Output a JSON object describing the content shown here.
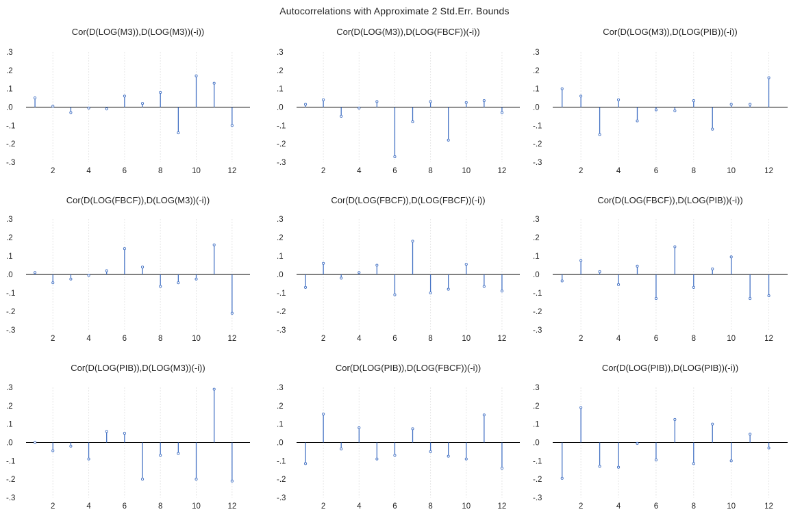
{
  "title": "Autocorrelations with Approximate 2 Std.Err. Bounds",
  "chart_data": [
    {
      "type": "bar",
      "title": "Cor(D(LOG(M3)),D(LOG(M3))(-i))",
      "x": [
        1,
        2,
        3,
        4,
        5,
        6,
        7,
        8,
        9,
        10,
        11,
        12
      ],
      "values": [
        0.05,
        0.005,
        -0.03,
        -0.005,
        -0.01,
        0.06,
        0.02,
        0.08,
        -0.14,
        0.17,
        0.13,
        -0.1
      ],
      "ylim": [
        -0.3,
        0.3
      ],
      "yticks": [
        ".3",
        ".2",
        ".1",
        ".0",
        "-.1",
        "-.2",
        "-.3"
      ],
      "xticks": [
        "2",
        "4",
        "6",
        "8",
        "10",
        "12"
      ],
      "grid": true
    },
    {
      "type": "bar",
      "title": "Cor(D(LOG(M3)),D(LOG(FBCF))(-i))",
      "x": [
        1,
        2,
        3,
        4,
        5,
        6,
        7,
        8,
        9,
        10,
        11,
        12
      ],
      "values": [
        0.015,
        0.04,
        -0.05,
        -0.005,
        0.03,
        -0.27,
        -0.08,
        0.03,
        -0.18,
        0.025,
        0.035,
        -0.03
      ],
      "ylim": [
        -0.3,
        0.3
      ],
      "yticks": [
        ".3",
        ".2",
        ".1",
        ".0",
        "-.1",
        "-.2",
        "-.3"
      ],
      "xticks": [
        "2",
        "4",
        "6",
        "8",
        "10",
        "12"
      ],
      "grid": true
    },
    {
      "type": "bar",
      "title": "Cor(D(LOG(M3)),D(LOG(PIB))(-i))",
      "x": [
        1,
        2,
        3,
        4,
        5,
        6,
        7,
        8,
        9,
        10,
        11,
        12
      ],
      "values": [
        0.1,
        0.06,
        -0.15,
        0.04,
        -0.075,
        -0.015,
        -0.02,
        0.035,
        -0.12,
        0.015,
        0.015,
        0.16
      ],
      "ylim": [
        -0.3,
        0.3
      ],
      "yticks": [
        ".3",
        ".2",
        ".1",
        ".0",
        "-.1",
        "-.2",
        "-.3"
      ],
      "xticks": [
        "2",
        "4",
        "6",
        "8",
        "10",
        "12"
      ],
      "grid": true
    },
    {
      "type": "bar",
      "title": "Cor(D(LOG(FBCF)),D(LOG(M3))(-i))",
      "x": [
        1,
        2,
        3,
        4,
        5,
        6,
        7,
        8,
        9,
        10,
        11,
        12
      ],
      "values": [
        0.01,
        -0.045,
        -0.025,
        -0.005,
        0.02,
        0.14,
        0.04,
        -0.065,
        -0.045,
        -0.025,
        0.16,
        -0.21
      ],
      "ylim": [
        -0.3,
        0.3
      ],
      "yticks": [
        ".3",
        ".2",
        ".1",
        ".0",
        "-.1",
        "-.2",
        "-.3"
      ],
      "xticks": [
        "2",
        "4",
        "6",
        "8",
        "10",
        "12"
      ],
      "grid": true
    },
    {
      "type": "bar",
      "title": "Cor(D(LOG(FBCF)),D(LOG(FBCF))(-i))",
      "x": [
        1,
        2,
        3,
        4,
        5,
        6,
        7,
        8,
        9,
        10,
        11,
        12
      ],
      "values": [
        -0.07,
        0.06,
        -0.02,
        0.01,
        0.05,
        -0.11,
        0.18,
        -0.1,
        -0.08,
        0.055,
        -0.065,
        -0.09
      ],
      "ylim": [
        -0.3,
        0.3
      ],
      "yticks": [
        ".3",
        ".2",
        ".1",
        ".0",
        "-.1",
        "-.2",
        "-.3"
      ],
      "xticks": [
        "2",
        "4",
        "6",
        "8",
        "10",
        "12"
      ],
      "grid": true
    },
    {
      "type": "bar",
      "title": "Cor(D(LOG(FBCF)),D(LOG(PIB))(-i))",
      "x": [
        1,
        2,
        3,
        4,
        5,
        6,
        7,
        8,
        9,
        10,
        11,
        12
      ],
      "values": [
        -0.035,
        0.075,
        0.015,
        -0.055,
        0.045,
        -0.13,
        0.15,
        -0.07,
        0.03,
        0.095,
        -0.13,
        -0.115
      ],
      "ylim": [
        -0.3,
        0.3
      ],
      "yticks": [
        ".3",
        ".2",
        ".1",
        ".0",
        "-.1",
        "-.2",
        "-.3"
      ],
      "xticks": [
        "2",
        "4",
        "6",
        "8",
        "10",
        "12"
      ],
      "grid": true
    },
    {
      "type": "bar",
      "title": "Cor(D(LOG(PIB)),D(LOG(M3))(-i))",
      "x": [
        1,
        2,
        3,
        4,
        5,
        6,
        7,
        8,
        9,
        10,
        11,
        12
      ],
      "values": [
        0.0,
        -0.045,
        -0.02,
        -0.09,
        0.06,
        0.05,
        -0.2,
        -0.07,
        -0.06,
        -0.2,
        0.29,
        -0.21
      ],
      "ylim": [
        -0.3,
        0.3
      ],
      "yticks": [
        ".3",
        ".2",
        ".1",
        ".0",
        "-.1",
        "-.2",
        "-.3"
      ],
      "xticks": [
        "2",
        "4",
        "6",
        "8",
        "10",
        "12"
      ],
      "grid": true
    },
    {
      "type": "bar",
      "title": "Cor(D(LOG(PIB)),D(LOG(FBCF))(-i))",
      "x": [
        1,
        2,
        3,
        4,
        5,
        6,
        7,
        8,
        9,
        10,
        11,
        12
      ],
      "values": [
        -0.115,
        0.155,
        -0.035,
        0.08,
        -0.09,
        -0.07,
        0.075,
        -0.05,
        -0.075,
        -0.09,
        0.15,
        -0.14
      ],
      "ylim": [
        -0.3,
        0.3
      ],
      "yticks": [
        ".3",
        ".2",
        ".1",
        ".0",
        "-.1",
        "-.2",
        "-.3"
      ],
      "xticks": [
        "2",
        "4",
        "6",
        "8",
        "10",
        "12"
      ],
      "grid": true
    },
    {
      "type": "bar",
      "title": "Cor(D(LOG(PIB)),D(LOG(PIB))(-i))",
      "x": [
        1,
        2,
        3,
        4,
        5,
        6,
        7,
        8,
        9,
        10,
        11,
        12
      ],
      "values": [
        -0.195,
        0.19,
        -0.13,
        -0.135,
        -0.005,
        -0.095,
        0.125,
        -0.115,
        0.1,
        -0.1,
        0.045,
        -0.03
      ],
      "ylim": [
        -0.3,
        0.3
      ],
      "yticks": [
        ".3",
        ".2",
        ".1",
        ".0",
        "-.1",
        "-.2",
        "-.3"
      ],
      "xticks": [
        "2",
        "4",
        "6",
        "8",
        "10",
        "12"
      ],
      "grid": true
    }
  ],
  "colors": {
    "series": "#4472c4",
    "axis": "#000000",
    "grid": "#e6e6e6",
    "text": "#222222"
  }
}
